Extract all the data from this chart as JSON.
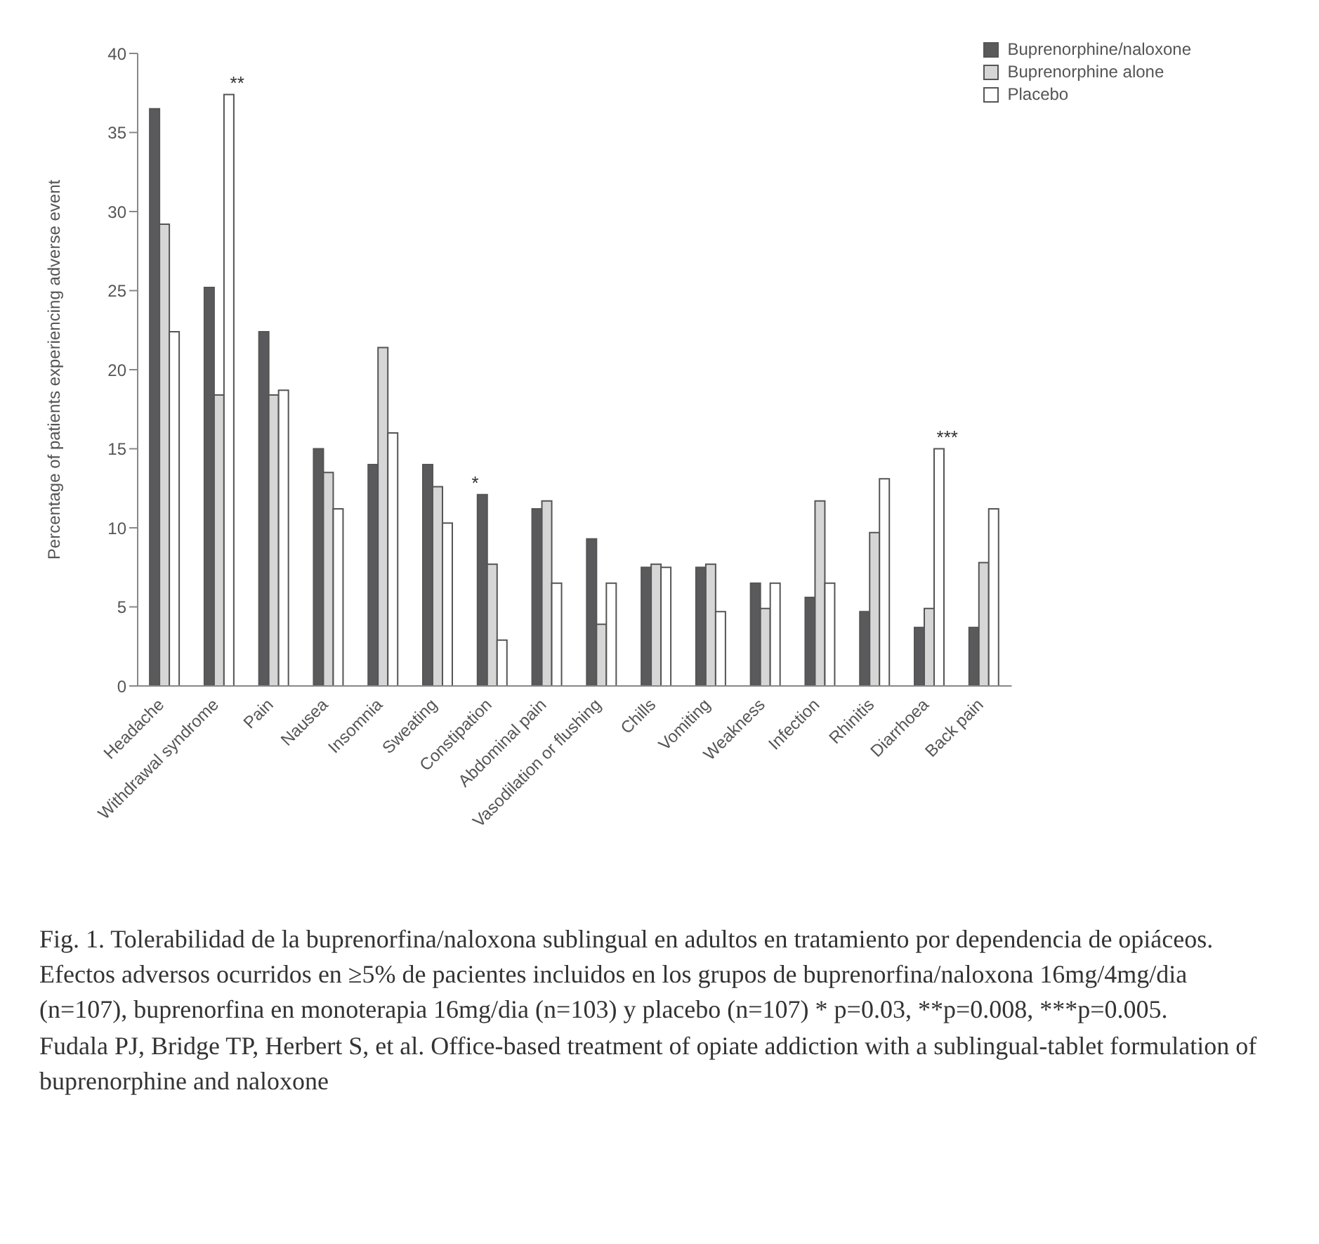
{
  "chart_data": {
    "type": "bar",
    "ylabel": "Percentage of patients experiencing adverse event",
    "categories": [
      "Headache",
      "Withdrawal syndrome",
      "Pain",
      "Nausea",
      "Insomnia",
      "Sweating",
      "Constipation",
      "Abdominal pain",
      "Vasodilation or flushing",
      "Chills",
      "Vomiting",
      "Weakness",
      "Infection",
      "Rhinitis",
      "Diarrhoea",
      "Back pain"
    ],
    "series": [
      {
        "name": "Buprenorphine/naloxone",
        "color": "#5a5a5c",
        "values": [
          36.5,
          25.2,
          22.4,
          15,
          14,
          14,
          12.1,
          11.2,
          9.3,
          7.5,
          7.5,
          6.5,
          5.6,
          4.7,
          3.7,
          3.7
        ]
      },
      {
        "name": "Buprenorphine alone",
        "color": "#d6d6d6",
        "values": [
          29.2,
          18.4,
          18.4,
          13.5,
          21.4,
          12.6,
          7.7,
          11.7,
          3.9,
          7.7,
          7.7,
          4.9,
          11.7,
          9.7,
          4.9,
          7.8
        ]
      },
      {
        "name": "Placebo",
        "color": "#ffffff",
        "values": [
          22.4,
          37.4,
          18.7,
          11.2,
          16,
          10.3,
          2.9,
          6.5,
          6.5,
          7.5,
          4.7,
          6.5,
          6.5,
          13.1,
          15,
          11.2
        ]
      }
    ],
    "ylim": [
      0,
      40
    ],
    "yticks": [
      0,
      5,
      10,
      15,
      20,
      25,
      30,
      35,
      40
    ],
    "grid": false,
    "legend": "top right",
    "annotations": [
      "**",
      "*",
      "***",
      "Fig. 1. Tolerabilidad de la buprenorfina/naloxona sublingual en adultos en tratamiento por dependencia de opiáceos. Efectos adversos ocurridos en ≥5% de pacientes incluidos en los grupos de buprenorfina/naloxona 16mg/4mg/dia (n=107), buprenorfina en monoterapia 16mg/dia (n=103) y placebo (n=107) * p=0.03, **p=0.008, ***p=0.005.",
      "Fudala PJ, Bridge TP, Herbert S, et al. Office-based treatment of opiate addiction with a sublingual-tablet formulation of buprenorphine and naloxone"
    ]
  }
}
